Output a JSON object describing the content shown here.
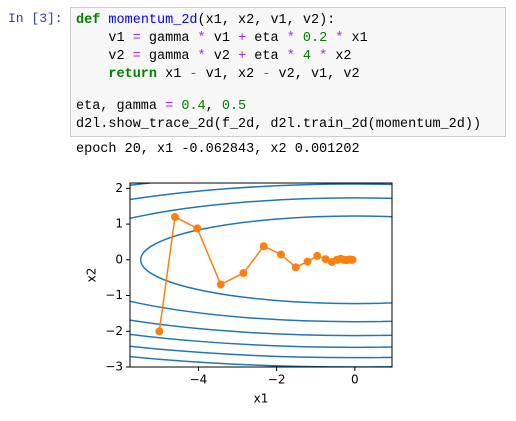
{
  "cell": {
    "prompt": "In [3]:",
    "code_blocks": [
      [
        [
          {
            "t": "def",
            "c": "#008000",
            "bold": true
          },
          {
            "t": " "
          },
          {
            "t": "momentum_2d",
            "c": "#0000ff"
          },
          {
            "t": "(x1, x2, v1, v2):"
          }
        ],
        [
          {
            "t": "    v1 "
          },
          {
            "t": "=",
            "c": "#aa22ff"
          },
          {
            "t": " gamma "
          },
          {
            "t": "*",
            "c": "#aa22ff"
          },
          {
            "t": " v1 "
          },
          {
            "t": "+",
            "c": "#aa22ff"
          },
          {
            "t": " eta "
          },
          {
            "t": "*",
            "c": "#aa22ff"
          },
          {
            "t": " "
          },
          {
            "t": "0.2",
            "c": "#008000"
          },
          {
            "t": " "
          },
          {
            "t": "*",
            "c": "#aa22ff"
          },
          {
            "t": " x1"
          }
        ],
        [
          {
            "t": "    v2 "
          },
          {
            "t": "=",
            "c": "#aa22ff"
          },
          {
            "t": " gamma "
          },
          {
            "t": "*",
            "c": "#aa22ff"
          },
          {
            "t": " v2 "
          },
          {
            "t": "+",
            "c": "#aa22ff"
          },
          {
            "t": " eta "
          },
          {
            "t": "*",
            "c": "#aa22ff"
          },
          {
            "t": " "
          },
          {
            "t": "4",
            "c": "#008000"
          },
          {
            "t": " "
          },
          {
            "t": "*",
            "c": "#aa22ff"
          },
          {
            "t": " x2"
          }
        ],
        [
          {
            "t": "    "
          },
          {
            "t": "return",
            "c": "#008000",
            "bold": true
          },
          {
            "t": " x1 "
          },
          {
            "t": "-",
            "c": "#aa22ff"
          },
          {
            "t": " v1, x2 "
          },
          {
            "t": "-",
            "c": "#aa22ff"
          },
          {
            "t": " v2, v1, v2"
          }
        ]
      ],
      [
        [
          {
            "t": "eta, gamma "
          },
          {
            "t": "=",
            "c": "#aa22ff"
          },
          {
            "t": " "
          },
          {
            "t": "0.4",
            "c": "#008000"
          },
          {
            "t": ", "
          },
          {
            "t": "0.5",
            "c": "#008000"
          }
        ],
        [
          {
            "t": "d2l.show_trace_2d(f_2d, d2l.train_2d(momentum_2d))"
          }
        ]
      ]
    ],
    "output": "epoch 20, x1 -0.062843, x2 0.001202"
  },
  "chart_data": {
    "type": "trace",
    "x": [
      -5,
      -4.6,
      -4.03,
      -3.43,
      -2.85,
      -2.33,
      -1.89,
      -1.51,
      -1.21,
      -0.96,
      -0.75,
      -0.59,
      -0.46,
      -0.36,
      -0.28,
      -0.22,
      -0.17,
      -0.13,
      -0.1,
      -0.08,
      -0.06
    ],
    "values": [
      -2,
      1.2,
      0.88,
      -0.69,
      -0.37,
      0.38,
      0.15,
      -0.21,
      -0.05,
      0.11,
      0.02,
      -0.06,
      0.0,
      0.03,
      0.0,
      -0.01,
      0.0,
      0.01,
      0.0,
      0.0,
      0.0
    ],
    "color": "#ff7f0e",
    "contour_levels": [
      3,
      6,
      9,
      12,
      15,
      18
    ],
    "contour_color": "#1f77b4",
    "xlabel": "x1",
    "ylabel": "x2",
    "xlim": [
      -5.75,
      0.95
    ],
    "ylim": [
      -3,
      2.15
    ],
    "xticks": [
      {
        "value": -4,
        "label": "−4"
      },
      {
        "value": -2,
        "label": "−2"
      },
      0
    ],
    "yticks": [
      {
        "value": -3,
        "label": "−3"
      },
      {
        "value": -2,
        "label": "−2"
      },
      {
        "value": -1,
        "label": "−1"
      },
      0,
      1,
      2
    ]
  }
}
